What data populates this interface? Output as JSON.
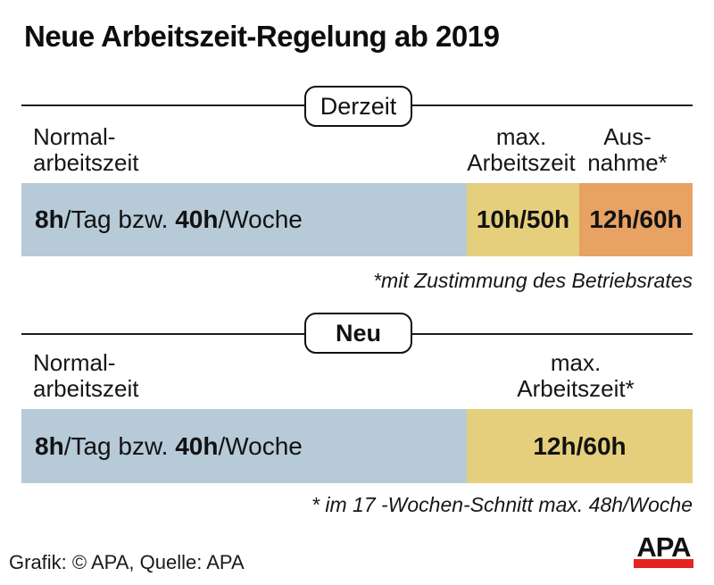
{
  "title": "Neue Arbeitszeit-Regelung ab 2019",
  "colors": {
    "normal_segment": "#b7cad8",
    "max_segment": "#e5cf7c",
    "exception_segment": "#e8a263",
    "logo_red": "#e5231f",
    "text": "#111111"
  },
  "current": {
    "badge": "Derzeit",
    "headers": {
      "normal1": "Normal-",
      "normal2": "arbeitszeit",
      "max1": "max.",
      "max2": "Arbeitszeit",
      "exc1": "Aus-",
      "exc2": "nahme*"
    },
    "bar": {
      "normal_bold1": "8h",
      "normal_reg1": "/Tag bzw. ",
      "normal_bold2": "40h",
      "normal_reg2": "/Woche",
      "max": "10h/50h",
      "exception": "12h/60h"
    },
    "footnote": "*mit Zustimmung des Betriebsrates"
  },
  "new": {
    "badge": "Neu",
    "headers": {
      "normal1": "Normal-",
      "normal2": "arbeitszeit",
      "max1": "max.",
      "max2": "Arbeitszeit*"
    },
    "bar": {
      "normal_bold1": "8h",
      "normal_reg1": "/Tag bzw. ",
      "normal_bold2": "40h",
      "normal_reg2": "/Woche",
      "max": "12h/60h"
    },
    "footnote": "* im 17 -Wochen-Schnitt max. 48h/Woche"
  },
  "footer": {
    "credit": "Grafik: © APA, Quelle: APA",
    "logo_text": "APA"
  },
  "chart_data": [
    {
      "type": "bar",
      "title": "Derzeit",
      "categories": [
        "Normalarbeitszeit",
        "max. Arbeitszeit",
        "Ausnahme*"
      ],
      "labels": [
        "8h/Tag bzw. 40h/Woche",
        "10h/50h",
        "12h/60h"
      ],
      "hours_per_day": [
        8,
        10,
        12
      ],
      "hours_per_week": [
        40,
        50,
        60
      ],
      "segment_widths_fraction": [
        0.664,
        0.168,
        0.168
      ],
      "segment_colors": [
        "#b7cad8",
        "#e5cf7c",
        "#e8a263"
      ],
      "footnote": "*mit Zustimmung des Betriebsrates",
      "legend_position": "none",
      "grid": false
    },
    {
      "type": "bar",
      "title": "Neu",
      "categories": [
        "Normalarbeitszeit",
        "max. Arbeitszeit*"
      ],
      "labels": [
        "8h/Tag bzw. 40h/Woche",
        "12h/60h"
      ],
      "hours_per_day": [
        8,
        12
      ],
      "hours_per_week": [
        40,
        60
      ],
      "segment_widths_fraction": [
        0.664,
        0.336
      ],
      "segment_colors": [
        "#b7cad8",
        "#e5cf7c"
      ],
      "footnote": "* im 17 -Wochen-Schnitt max. 48h/Woche",
      "legend_position": "none",
      "grid": false
    }
  ]
}
